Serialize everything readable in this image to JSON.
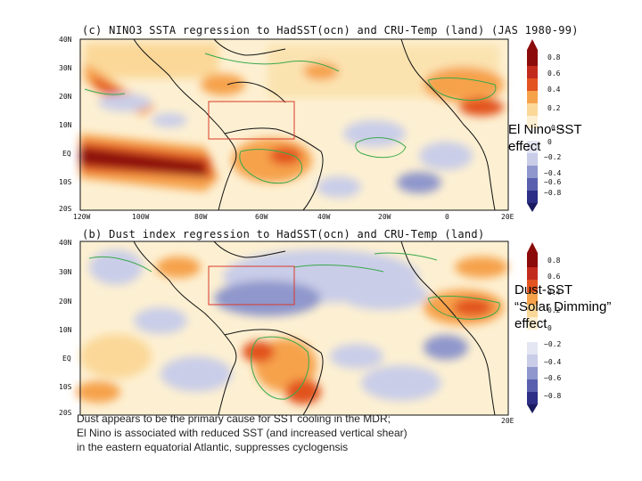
{
  "panel_c": {
    "title": "(c) NINO3 SSTA regression to HadSST(ocn) and CRU-Temp (land) (JAS 1980-99)",
    "lat_ticks": [
      "40N",
      "30N",
      "20N",
      "10N",
      "EQ",
      "10S",
      "20S"
    ],
    "lon_ticks": [
      "120W",
      "100W",
      "80W",
      "60W",
      "40W",
      "20W",
      "0",
      "20E"
    ],
    "colorbar": [
      "0.8",
      "0.6",
      "0.4",
      "0.2",
      "0.2",
      "0",
      "−0.2",
      "−0.4",
      "−0.6",
      "−0.8"
    ],
    "annotation_line1": "El Nino-SST",
    "annotation_line2": "effect"
  },
  "panel_b": {
    "title": "(b) Dust index regression to HadSST(ocn) and CRU-Temp (land)",
    "lat_ticks": [
      "40N",
      "30N",
      "20N",
      "10N",
      "EQ",
      "10S",
      "20S"
    ],
    "lon_ticks": [
      "20E"
    ],
    "colorbar": [
      "0.8",
      "0.6",
      "0.4",
      "0.2",
      "0",
      "−0.2",
      "−0.4",
      "−0.6",
      "−0.8"
    ],
    "annotation_line1": "Dust-SST",
    "annotation_line2": "“Solar Dimming”",
    "annotation_line3": "effect"
  },
  "caption": {
    "line1": "Dust appears to be the primary cause for SST cooling in the MDR;",
    "line2": "El Nino is associated with reduced SST (and increased vertical shear)",
    "line3": "in the eastern equatorial Atlantic, suppresses cyclogensis"
  },
  "colors": {
    "dark_red": "#8b0a0a",
    "red": "#e2531f",
    "orange": "#f6a24b",
    "light_orange": "#fbd898",
    "pale": "#fdf0d2",
    "light_blue": "#c9cde8",
    "blue": "#8f97cc",
    "dark_blue": "#2d2e86",
    "contour_green": "#3aa84a",
    "box_red": "#d93a2a"
  }
}
